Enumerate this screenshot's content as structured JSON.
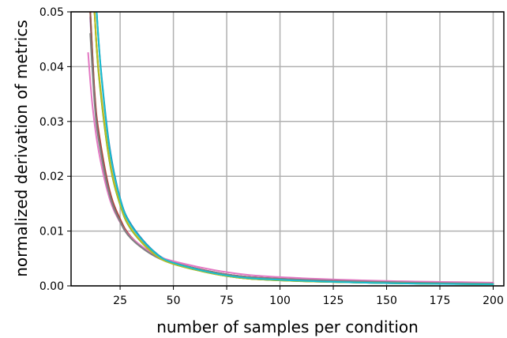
{
  "chart_data": {
    "type": "line",
    "title": "",
    "xlabel": "number of samples per condition",
    "ylabel": "normalized derivation of metrics",
    "xlim": [
      2,
      205
    ],
    "ylim": [
      0,
      0.05
    ],
    "xticks": [
      25,
      50,
      75,
      100,
      125,
      150,
      175,
      200
    ],
    "yticks": [
      0.0,
      0.01,
      0.02,
      0.03,
      0.04,
      0.05
    ],
    "xtick_labels": [
      "25",
      "50",
      "75",
      "100",
      "125",
      "150",
      "175",
      "200"
    ],
    "ytick_labels": [
      "0.00",
      "0.01",
      "0.02",
      "0.03",
      "0.04",
      "0.05"
    ],
    "grid": true,
    "legend": "none",
    "series": [
      {
        "color": "#1f77b4",
        "x": [
          14,
          16,
          20,
          25,
          30,
          40,
          50,
          75,
          100,
          150,
          200
        ],
        "y": [
          0.05,
          0.0395,
          0.0255,
          0.016,
          0.0113,
          0.0066,
          0.0043,
          0.0019,
          0.0011,
          0.0005,
          0.0003
        ]
      },
      {
        "color": "#ff7f0e",
        "x": [
          13,
          15,
          20,
          25,
          30,
          40,
          50,
          75,
          100,
          150,
          200
        ],
        "y": [
          0.05,
          0.039,
          0.0232,
          0.015,
          0.0105,
          0.0062,
          0.0041,
          0.0018,
          0.001,
          0.0005,
          0.0003
        ]
      },
      {
        "color": "#2ca02c",
        "x": [
          13,
          15,
          20,
          25,
          30,
          40,
          50,
          75,
          100,
          150,
          200
        ],
        "y": [
          0.05,
          0.0385,
          0.0228,
          0.0148,
          0.0104,
          0.0061,
          0.004,
          0.0018,
          0.001,
          0.0005,
          0.0003
        ]
      },
      {
        "color": "#d62728",
        "x": [
          11,
          13,
          15,
          20,
          25,
          30,
          40,
          50,
          75,
          100,
          150,
          200
        ],
        "y": [
          0.05,
          0.0355,
          0.028,
          0.0175,
          0.0122,
          0.009,
          0.0058,
          0.0042,
          0.0021,
          0.0013,
          0.0007,
          0.0004
        ]
      },
      {
        "color": "#9467bd",
        "x": [
          11,
          13,
          15,
          20,
          25,
          30,
          40,
          50,
          75,
          100,
          150,
          200
        ],
        "y": [
          0.049,
          0.0345,
          0.0272,
          0.017,
          0.0119,
          0.0088,
          0.0057,
          0.0042,
          0.0021,
          0.0013,
          0.0007,
          0.0004
        ]
      },
      {
        "color": "#8c564b",
        "x": [
          11,
          13,
          15,
          20,
          25,
          30,
          40,
          50,
          75,
          100,
          150,
          200
        ],
        "y": [
          0.05,
          0.035,
          0.0275,
          0.0172,
          0.012,
          0.0089,
          0.0058,
          0.0042,
          0.0021,
          0.0013,
          0.0007,
          0.0004
        ]
      },
      {
        "color": "#e377c2",
        "x": [
          10,
          12,
          15,
          20,
          25,
          30,
          40,
          50,
          75,
          100,
          150,
          200
        ],
        "y": [
          0.0425,
          0.033,
          0.0245,
          0.016,
          0.0116,
          0.0089,
          0.006,
          0.0045,
          0.0025,
          0.0016,
          0.0009,
          0.0006
        ]
      },
      {
        "color": "#7f7f7f",
        "x": [
          11,
          13,
          15,
          20,
          25,
          30,
          40,
          50,
          75,
          100,
          150,
          200
        ],
        "y": [
          0.046,
          0.0335,
          0.0265,
          0.0167,
          0.0117,
          0.0087,
          0.0057,
          0.0042,
          0.0021,
          0.0013,
          0.0007,
          0.0004
        ]
      },
      {
        "color": "#bcbd22",
        "x": [
          13,
          15,
          20,
          25,
          30,
          40,
          50,
          75,
          100,
          150,
          200
        ],
        "y": [
          0.05,
          0.0388,
          0.023,
          0.0149,
          0.0105,
          0.0061,
          0.004,
          0.0018,
          0.001,
          0.0005,
          0.0003
        ]
      },
      {
        "color": "#17becf",
        "x": [
          14,
          16,
          20,
          25,
          30,
          40,
          50,
          75,
          100,
          150,
          200
        ],
        "y": [
          0.05,
          0.0392,
          0.025,
          0.0158,
          0.0111,
          0.0065,
          0.0042,
          0.0019,
          0.0011,
          0.0005,
          0.0003
        ]
      }
    ]
  }
}
